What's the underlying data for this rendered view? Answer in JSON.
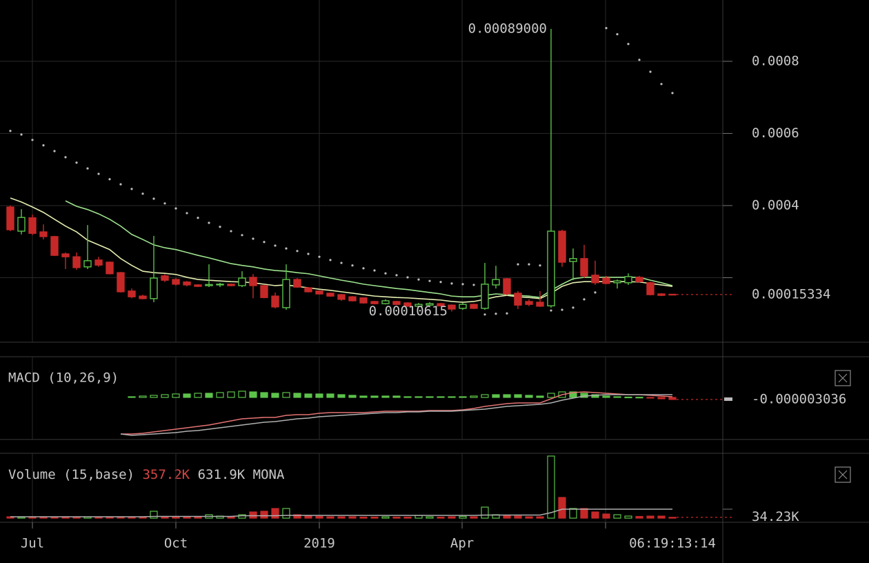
{
  "chart_data": [
    {
      "type": "candlestick",
      "ylim": [
        2.3e-05,
        0.00097
      ],
      "yticks": [
        {
          "value": 0.0002,
          "label": null
        },
        0.0004,
        0.0006,
        0.0008
      ],
      "xticks": [
        {
          "value": 2,
          "label": "Jul"
        },
        {
          "value": 15,
          "label": "Oct"
        },
        {
          "value": 28,
          "label": "2019"
        },
        {
          "value": 40.94,
          "label": "Apr"
        },
        {
          "value": 53.94,
          "label": null
        }
      ],
      "countdown": "06:19:13:14",
      "up_color": "#5cc34a",
      "down_color": "#c62828",
      "open": [
        0.000396,
        0.000329,
        0.000366,
        0.000327,
        0.000314,
        0.000266,
        0.000258,
        0.00023,
        0.000249,
        0.000243,
        0.000214,
        0.000163,
        0.000149,
        0.000142,
        0.000205,
        0.000195,
        0.000188,
        0.00018,
        0.000178,
        0.00018,
        0.000182,
        0.000178,
        0.000201,
        0.000178,
        0.000149,
        0.000117,
        0.000195,
        0.000172,
        0.000163,
        0.000157,
        0.000153,
        0.000147,
        0.000144,
        0.000134,
        0.000128,
        0.000134,
        0.00013,
        0.000121,
        0.000124,
        0.000128,
        0.000124,
        0.000115,
        0.000126,
        0.000115,
        0.00018,
        0.000197,
        0.000157,
        0.000134,
        0.000132,
        0.000122,
        0.000329,
        0.000245,
        0.000253,
        0.000207,
        0.000199,
        0.000186,
        0.000186,
        0.000201,
        0.000186,
        0.000155,
        0.000154
      ],
      "close": [
        0.000333,
        0.000367,
        0.000323,
        0.000314,
        0.000262,
        0.000258,
        0.000228,
        0.000247,
        0.000235,
        0.000211,
        0.000161,
        0.000147,
        0.000142,
        0.000199,
        0.000193,
        0.000182,
        0.00018,
        0.000176,
        0.000181,
        0.000182,
        0.000178,
        0.000199,
        0.000178,
        0.000145,
        0.000119,
        0.000195,
        0.000174,
        0.000161,
        0.000155,
        0.000149,
        0.00014,
        0.000136,
        0.00013,
        0.000128,
        0.000136,
        0.000126,
        0.000121,
        0.000126,
        0.000128,
        0.000122,
        0.000113,
        0.000126,
        0.000115,
        0.000182,
        0.000195,
        0.000155,
        0.000124,
        0.000126,
        0.000121,
        0.000329,
        0.000243,
        0.000253,
        0.000205,
        0.000186,
        0.000184,
        0.000191,
        0.000203,
        0.000189,
        0.000153,
        0.000151,
        0.00015334
      ],
      "high": [
        0.0004,
        0.00039,
        0.000375,
        0.000348,
        0.000316,
        0.00027,
        0.00027,
        0.000346,
        0.000258,
        0.000245,
        0.000216,
        0.00017,
        0.000153,
        0.000316,
        0.00021,
        0.000199,
        0.000191,
        0.000182,
        0.000237,
        0.000186,
        0.000184,
        0.000218,
        0.00021,
        0.00018,
        0.000159,
        0.000237,
        0.000199,
        0.000174,
        0.000165,
        0.000159,
        0.000155,
        0.000149,
        0.000145,
        0.000136,
        0.00014,
        0.000136,
        0.000132,
        0.00013,
        0.000132,
        0.00013,
        0.000126,
        0.00013,
        0.000128,
        0.000241,
        0.000233,
        0.000199,
        0.000163,
        0.00014,
        0.000163,
        0.00089,
        0.000333,
        0.000281,
        0.000291,
        0.000247,
        0.000205,
        0.000195,
        0.000212,
        0.000205,
        0.000189,
        0.000157,
        0.000155
      ],
      "low": [
        0.000329,
        0.00032,
        0.000318,
        0.000306,
        0.00026,
        0.000224,
        0.000222,
        0.000224,
        0.00023,
        0.000209,
        0.000159,
        0.000143,
        0.00014,
        0.000132,
        0.000188,
        0.000178,
        0.000176,
        0.000174,
        0.000174,
        0.000174,
        0.000176,
        0.000174,
        0.000143,
        0.000143,
        0.000115,
        0.000111,
        0.000172,
        0.000159,
        0.000153,
        0.000147,
        0.000136,
        0.000134,
        0.000128,
        0.000126,
        0.000126,
        0.000124,
        0.000119,
        0.000119,
        0.000122,
        0.000121,
        0.00010615,
        0.000111,
        0.000113,
        0.000111,
        0.00017,
        0.000151,
        0.000113,
        0.000121,
        0.000119,
        0.000117,
        0.00023,
        0.000193,
        0.000199,
        0.00018,
        0.000182,
        0.00017,
        0.00018,
        0.000186,
        0.000151,
        0.000149,
        0.000153
      ],
      "lines": [
        {
          "color": "#e4eeb0",
          "values": [
            0.000421,
            0.00041,
            0.000396,
            0.000381,
            0.000362,
            0.000343,
            0.000327,
            0.000304,
            0.000291,
            0.000278,
            0.000253,
            0.000234,
            0.000218,
            0.000214,
            0.000212,
            0.000209,
            0.000201,
            0.000195,
            0.000193,
            0.000191,
            0.000189,
            0.000188,
            0.000186,
            0.000182,
            0.000178,
            0.00018,
            0.000176,
            0.000172,
            0.000168,
            0.000165,
            0.000161,
            0.000157,
            0.000153,
            0.000149,
            0.000147,
            0.000145,
            0.000144,
            0.000142,
            0.00014,
            0.000138,
            0.000134,
            0.000132,
            0.000134,
            0.00014,
            0.000147,
            0.000151,
            0.000147,
            0.000145,
            0.000142,
            0.000157,
            0.000176,
            0.000186,
            0.000189,
            0.000189,
            0.000189,
            0.000189,
            0.000189,
            0.000188,
            0.000184,
            0.00018,
            0.000176
          ]
        },
        {
          "color": "#9ee48e",
          "values": [
            null,
            null,
            null,
            null,
            null,
            0.000413,
            0.000398,
            0.000389,
            0.000377,
            0.000362,
            0.000343,
            0.00032,
            0.000306,
            0.000291,
            0.000283,
            0.000278,
            0.00027,
            0.000262,
            0.000255,
            0.000247,
            0.000239,
            0.000234,
            0.00023,
            0.000224,
            0.00022,
            0.000218,
            0.000214,
            0.000211,
            0.000205,
            0.000199,
            0.000193,
            0.000188,
            0.000182,
            0.000178,
            0.000174,
            0.00017,
            0.000167,
            0.000163,
            0.000159,
            0.000155,
            0.000149,
            0.000147,
            0.000147,
            0.000151,
            0.000155,
            0.000153,
            0.000151,
            0.000149,
            0.000145,
            0.000165,
            0.000182,
            0.000197,
            0.000201,
            0.000201,
            0.000201,
            0.000201,
            0.000201,
            0.000201,
            0.000193,
            0.000186,
            0.000178
          ]
        }
      ],
      "sar": {
        "color": "#bdbdbd",
        "values": [
          0.000607,
          0.000597,
          0.000582,
          0.000567,
          0.000551,
          0.000534,
          0.000519,
          0.000503,
          0.000488,
          0.000473,
          0.000459,
          0.000446,
          0.000433,
          0.000419,
          0.000406,
          0.000392,
          0.000379,
          0.000366,
          0.000352,
          0.000341,
          0.000329,
          0.000318,
          0.000308,
          0.000299,
          0.000289,
          0.000281,
          0.000274,
          0.000266,
          0.000258,
          0.000249,
          0.000241,
          0.000234,
          0.000226,
          0.00022,
          0.000212,
          0.000207,
          0.000201,
          0.000195,
          0.000191,
          0.000188,
          0.000184,
          0.000182,
          0.00018,
          9.8e-05,
          0.0001,
          0.000101,
          0.000237,
          0.000237,
          0.000234,
          0.000109,
          0.000111,
          0.000117,
          0.00014,
          0.000159,
          0.000892,
          0.000875,
          0.000848,
          0.000804,
          0.000771,
          0.000737,
          0.000712
        ]
      },
      "annotations": [
        {
          "value": 0.00089,
          "label": "0.00089000"
        },
        {
          "value": 0.00010615,
          "label": "0.00010615"
        }
      ]
    },
    {
      "type": "macd",
      "title": "MACD (10,26,9)",
      "ylim": [
        -6.1e-05,
        5.9e-05
      ],
      "up_color": "#5cc34a",
      "down_color": "#c62828",
      "histogram": [
        null,
        null,
        null,
        null,
        null,
        null,
        null,
        null,
        null,
        null,
        null,
        1e-06,
        2e-06,
        3e-06,
        4e-06,
        5e-06,
        5e-06,
        6e-06,
        6e-06,
        7e-06,
        8e-06,
        9e-06,
        8e-06,
        7e-06,
        6e-06,
        7e-06,
        6e-06,
        5e-06,
        5e-06,
        5e-06,
        4e-06,
        3e-06,
        2e-06,
        2e-06,
        2e-06,
        2e-06,
        1e-06,
        1e-06,
        1e-06,
        1e-06,
        1e-06,
        1e-06,
        2e-06,
        4e-06,
        4e-06,
        4e-06,
        4e-06,
        3e-06,
        2e-06,
        6e-06,
        8e-06,
        8e-06,
        6e-06,
        4e-06,
        2e-06,
        1e-06,
        5e-07,
        3e-07,
        -1e-06,
        -2e-06,
        -3.036e-06
      ],
      "lines": [
        {
          "color": "#e57373",
          "values": [
            null,
            null,
            null,
            null,
            null,
            null,
            null,
            null,
            null,
            null,
            -5.3e-05,
            -5.3e-05,
            -5.2e-05,
            -5e-05,
            -4.8e-05,
            -4.6e-05,
            -4.4e-05,
            -4.2e-05,
            -4e-05,
            -3.7e-05,
            -3.4e-05,
            -3.1e-05,
            -3e-05,
            -2.9e-05,
            -2.9e-05,
            -2.6e-05,
            -2.5e-05,
            -2.5e-05,
            -2.3e-05,
            -2.2e-05,
            -2.2e-05,
            -2.2e-05,
            -2.2e-05,
            -2.1e-05,
            -2e-05,
            -2e-05,
            -2e-05,
            -2e-05,
            -1.9e-05,
            -1.9e-05,
            -1.9e-05,
            -1.8e-05,
            -1.6e-05,
            -1.3e-05,
            -1.1e-05,
            -9e-06,
            -8e-06,
            -8e-06,
            -8e-06,
            -2e-06,
            4e-06,
            7e-06,
            8e-06,
            7e-06,
            6e-06,
            5e-06,
            4e-06,
            4e-06,
            3e-06,
            2e-06,
            1e-06
          ]
        },
        {
          "color": "#b0b0b0",
          "values": [
            null,
            null,
            null,
            null,
            null,
            null,
            null,
            null,
            null,
            null,
            -5.3e-05,
            -5.5e-05,
            -5.4e-05,
            -5.3e-05,
            -5.2e-05,
            -5.1e-05,
            -4.9e-05,
            -4.8e-05,
            -4.6e-05,
            -4.4e-05,
            -4.2e-05,
            -4e-05,
            -3.8e-05,
            -3.6e-05,
            -3.5e-05,
            -3.3e-05,
            -3.1e-05,
            -3e-05,
            -2.8e-05,
            -2.7e-05,
            -2.6e-05,
            -2.5e-05,
            -2.4e-05,
            -2.3e-05,
            -2.2e-05,
            -2.2e-05,
            -2.1e-05,
            -2.1e-05,
            -2e-05,
            -2e-05,
            -2e-05,
            -1.9e-05,
            -1.8e-05,
            -1.7e-05,
            -1.5e-05,
            -1.3e-05,
            -1.2e-05,
            -1.1e-05,
            -1e-05,
            -8e-06,
            -4e-06,
            -1e-06,
            2e-06,
            3e-06,
            4e-06,
            4e-06,
            4e-06,
            4e-06,
            4e-06,
            4e-06,
            4e-06
          ]
        }
      ]
    },
    {
      "type": "volume",
      "title": "Volume (15,base)",
      "header_values": [
        "357.2K",
        "631.9K"
      ],
      "unit": "MONA",
      "ylim": [
        0,
        2700000
      ],
      "values": [
        54000,
        40500,
        54000,
        54000,
        40500,
        54000,
        40500,
        54000,
        40500,
        54000,
        54000,
        40500,
        54000,
        270000,
        54000,
        40500,
        40500,
        54000,
        135000,
        81000,
        54000,
        135000,
        243000,
        270000,
        378000,
        378000,
        135000,
        81000,
        67500,
        54000,
        54000,
        54000,
        40500,
        40500,
        54000,
        40500,
        40500,
        108000,
        54000,
        40500,
        54000,
        67500,
        54000,
        432000,
        135000,
        94500,
        81000,
        54000,
        54000,
        2430000,
        810000,
        378000,
        378000,
        243000,
        162000,
        135000,
        81000,
        67500,
        81000,
        81000,
        34230
      ],
      "last_value_label": "34.23K",
      "ma": {
        "color": "#b0b0b0",
        "values": [
          54000,
          54000,
          54000,
          54000,
          54000,
          54000,
          54000,
          54000,
          54000,
          54000,
          54000,
          54000,
          54000,
          67500,
          67500,
          67500,
          67500,
          67500,
          67500,
          67500,
          67500,
          94500,
          94500,
          94500,
          94500,
          108000,
          108000,
          108000,
          108000,
          108000,
          108000,
          108000,
          108000,
          108000,
          108000,
          108000,
          108000,
          108000,
          108000,
          108000,
          108000,
          108000,
          108000,
          121500,
          121500,
          121500,
          121500,
          121500,
          121500,
          216000,
          351000,
          351000,
          351000,
          351000,
          351000,
          351000,
          351000,
          351000,
          351000,
          351000,
          351000
        ]
      }
    }
  ]
}
